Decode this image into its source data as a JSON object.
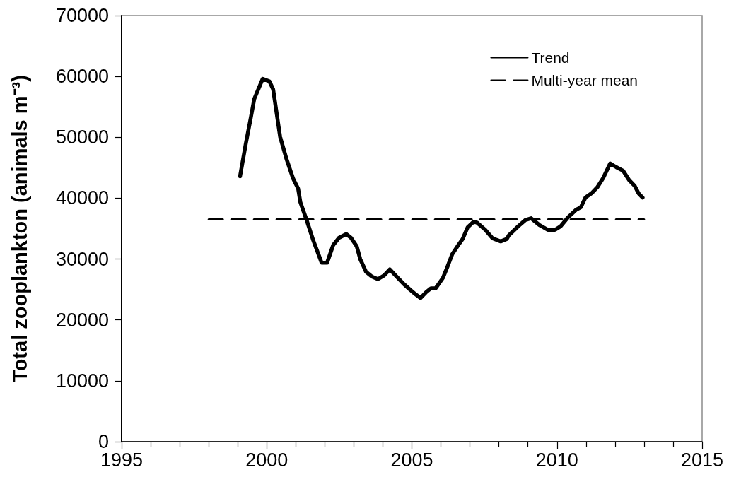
{
  "chart_data": {
    "type": "line",
    "ylabel": "Total zooplankton (animals m⁻³)",
    "xlim": [
      1995,
      2015
    ],
    "xticks": [
      1995,
      {
        "value": 1996,
        "label": null
      },
      {
        "value": 1997,
        "label": null
      },
      {
        "value": 1998,
        "label": null
      },
      {
        "value": 1999,
        "label": null
      },
      2000,
      {
        "value": 2001,
        "label": null
      },
      {
        "value": 2002,
        "label": null
      },
      {
        "value": 2003,
        "label": null
      },
      {
        "value": 2004,
        "label": null
      },
      2005,
      {
        "value": 2006,
        "label": null
      },
      {
        "value": 2007,
        "label": null
      },
      {
        "value": 2008,
        "label": null
      },
      {
        "value": 2009,
        "label": null
      },
      2010,
      {
        "value": 2011,
        "label": null
      },
      {
        "value": 2012,
        "label": null
      },
      {
        "value": 2013,
        "label": null
      },
      {
        "value": 2014,
        "label": null
      },
      2015
    ],
    "ylim": [
      0,
      70000
    ],
    "yticks": [
      0,
      10000,
      20000,
      30000,
      40000,
      50000,
      60000,
      70000
    ],
    "grid": false,
    "legend": "top right",
    "marker": "none",
    "series": [
      {
        "name": "Trend",
        "color": "#000000",
        "line_style": "solid",
        "x": [
          1999.08,
          1999.28,
          1999.45,
          1999.57,
          1999.86,
          2000.09,
          2000.22,
          2000.34,
          2000.46,
          2000.67,
          2000.91,
          2001.08,
          2001.16,
          2001.36,
          2001.6,
          2001.89,
          2002.08,
          2002.29,
          2002.49,
          2002.74,
          2002.9,
          2003.1,
          2003.22,
          2003.42,
          2003.63,
          2003.83,
          2004.04,
          2004.24,
          2004.48,
          2004.72,
          2004.93,
          2005.13,
          2005.3,
          2005.5,
          2005.66,
          2005.82,
          2006.07,
          2006.23,
          2006.39,
          2006.6,
          2006.75,
          2006.92,
          2007.12,
          2007.24,
          2007.53,
          2007.78,
          2008.06,
          2008.27,
          2008.34,
          2008.67,
          2008.91,
          2009.11,
          2009.39,
          2009.68,
          2009.93,
          2010.13,
          2010.37,
          2010.66,
          2010.82,
          2010.98,
          2011.19,
          2011.39,
          2011.59,
          2011.83,
          2012.04,
          2012.28,
          2012.48,
          2012.68,
          2012.81,
          2012.95
        ],
        "values": [
          43600,
          49000,
          53200,
          56300,
          59600,
          59200,
          57900,
          54000,
          50100,
          46600,
          43200,
          41600,
          39300,
          36600,
          33100,
          29400,
          29400,
          32300,
          33500,
          34100,
          33500,
          32100,
          30000,
          27900,
          27100,
          26700,
          27300,
          28300,
          27100,
          25900,
          25000,
          24200,
          23600,
          24600,
          25200,
          25200,
          26900,
          28800,
          30800,
          32300,
          33300,
          35200,
          36100,
          36000,
          34800,
          33400,
          32900,
          33300,
          33900,
          35400,
          36400,
          36700,
          35600,
          34800,
          34800,
          35400,
          36800,
          38100,
          38500,
          40100,
          40800,
          41800,
          43300,
          45700,
          45100,
          44500,
          43000,
          42000,
          40800,
          40100
        ]
      },
      {
        "name": "Multi-year mean",
        "color": "#000000",
        "line_style": "dashed",
        "x": [
          1998,
          2013
        ],
        "values": [
          36500,
          36500
        ]
      }
    ]
  }
}
